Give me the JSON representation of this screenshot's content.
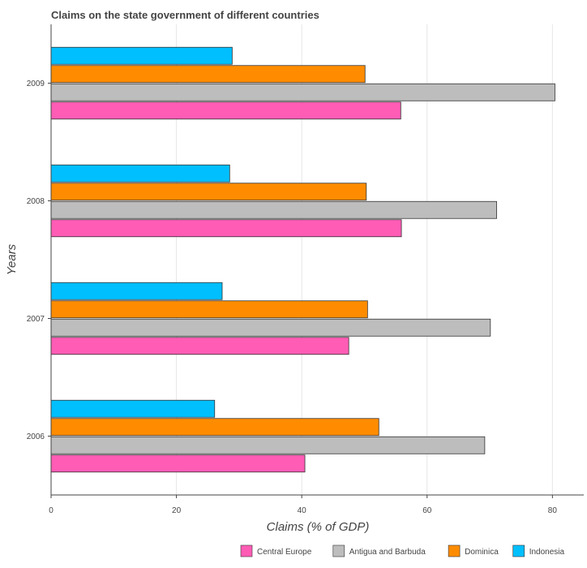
{
  "chart_data": {
    "type": "bar",
    "orientation": "horizontal",
    "title": "Claims on the state government of different countries",
    "xlabel": "Claims (% of GDP)",
    "ylabel": "Years",
    "xlim": [
      0,
      85
    ],
    "x_ticks": [
      0,
      20,
      40,
      60,
      80
    ],
    "x_tick_labels": [
      "0",
      "20",
      "40",
      "60",
      "80"
    ],
    "grid": true,
    "legend_position": "bottom-right",
    "categories": [
      "2009",
      "2008",
      "2007",
      "2006"
    ],
    "series": [
      {
        "name": "Central Europe",
        "color": "#ff5cb5",
        "values": [
          55.8,
          55.9,
          47.5,
          40.5
        ]
      },
      {
        "name": "Antigua and Barbuda",
        "color": "#bdbdbd",
        "values": [
          80.4,
          71.1,
          70.1,
          69.2
        ]
      },
      {
        "name": "Dominica",
        "color": "#ff8c00",
        "values": [
          50.1,
          50.3,
          50.5,
          52.3
        ]
      },
      {
        "name": "Indonesia",
        "color": "#00bfff",
        "values": [
          28.9,
          28.5,
          27.3,
          26.1
        ]
      }
    ]
  }
}
